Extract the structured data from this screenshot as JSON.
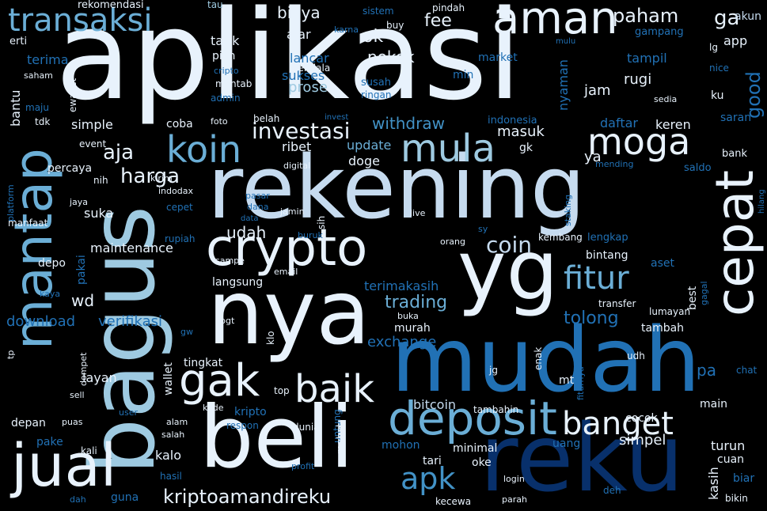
{
  "palette": {
    "background": "#000000",
    "lightest": "#e8f2fc",
    "light": "#c6dbef",
    "mid_light": "#9ecae1",
    "mid": "#6baed6",
    "mid_dark": "#4292c6",
    "dark": "#2171b5",
    "darker": "#08519c",
    "darkest": "#08306b"
  },
  "words": [
    "aplikasi",
    "rekening",
    "mudah",
    "reku",
    "bagus",
    "nya",
    "beli",
    "yg",
    "crypto",
    "mantap",
    "cepat",
    "jual",
    "deposit",
    "koin",
    "transaksi",
    "aman",
    "mula",
    "gak",
    "baik",
    "moga",
    "fitur",
    "banget",
    "apk",
    "kriptoamandireku",
    "investasi",
    "coin",
    "biaya",
    "paham",
    "trading",
    "good",
    "withdraw",
    "harga",
    "aja",
    "udah",
    "tolong",
    "bitcoin",
    "exchange",
    "verifikasi",
    "download",
    "wd",
    "ok",
    "fee",
    "ga",
    "akun",
    "ajar",
    "pilih",
    "prose",
    "sukses",
    "lancar",
    "tarik",
    "pokok",
    "terima",
    "bantu",
    "simple",
    "coba",
    "masuk",
    "ribet",
    "doge",
    "update",
    "percaya",
    "daftar",
    "keren",
    "tampil",
    "rugi",
    "nyaman",
    "jam",
    "market",
    "min",
    "app",
    "lg",
    "mantab",
    "saham",
    "erti",
    "rekomendasi",
    "tau",
    "sistem",
    "karna",
    "buy",
    "pindah",
    "mulu",
    "gampang",
    "cripto",
    "kendala",
    "susah",
    "ringan",
    "admin",
    "maju",
    "tdk",
    "ewallet",
    "event",
    "foto",
    "belah",
    "invest",
    "indonesia",
    "ku",
    "sedia",
    "nice",
    "saran",
    "bank",
    "gk",
    "ya",
    "mending",
    "saldo",
    "platform",
    "hilang",
    "digital",
    "kirim",
    "indodax",
    "pasar",
    "jamin",
    "staking",
    "sih",
    "live",
    "sy",
    "jaya",
    "manfaat",
    "nih",
    "suka",
    "cepet",
    "rupiah",
    "dana",
    "data",
    "buruk",
    "orang",
    "kembang",
    "lengkap",
    "bintang",
    "aset",
    "maintenance",
    "depo",
    "pakai",
    "sampe",
    "email",
    "langsung",
    "terimakasih",
    "best",
    "gagal",
    "transfer",
    "kaya",
    "tp",
    "gw",
    "bgt",
    "klo",
    "buka",
    "murah",
    "lumayan",
    "tambah",
    "layan",
    "tingkat",
    "wallet",
    "dompet",
    "top",
    "jg",
    "enak",
    "udh",
    "fiturnya",
    "mt",
    "pa",
    "chat",
    "sell",
    "user",
    "kode",
    "kripto",
    "untung",
    "tambahin",
    "cocok",
    "main",
    "depan",
    "puas",
    "alam",
    "salah",
    "respon",
    "dunia",
    "mahal",
    "mohon",
    "tari",
    "minimal",
    "oke",
    "uang",
    "simpel",
    "turun",
    "cuan",
    "pake",
    "kali",
    "kalo",
    "kasih",
    "biar",
    "hasil",
    "profit",
    "login",
    "deh",
    "guna",
    "dah",
    "kecewa",
    "parah",
    "bikin"
  ]
}
